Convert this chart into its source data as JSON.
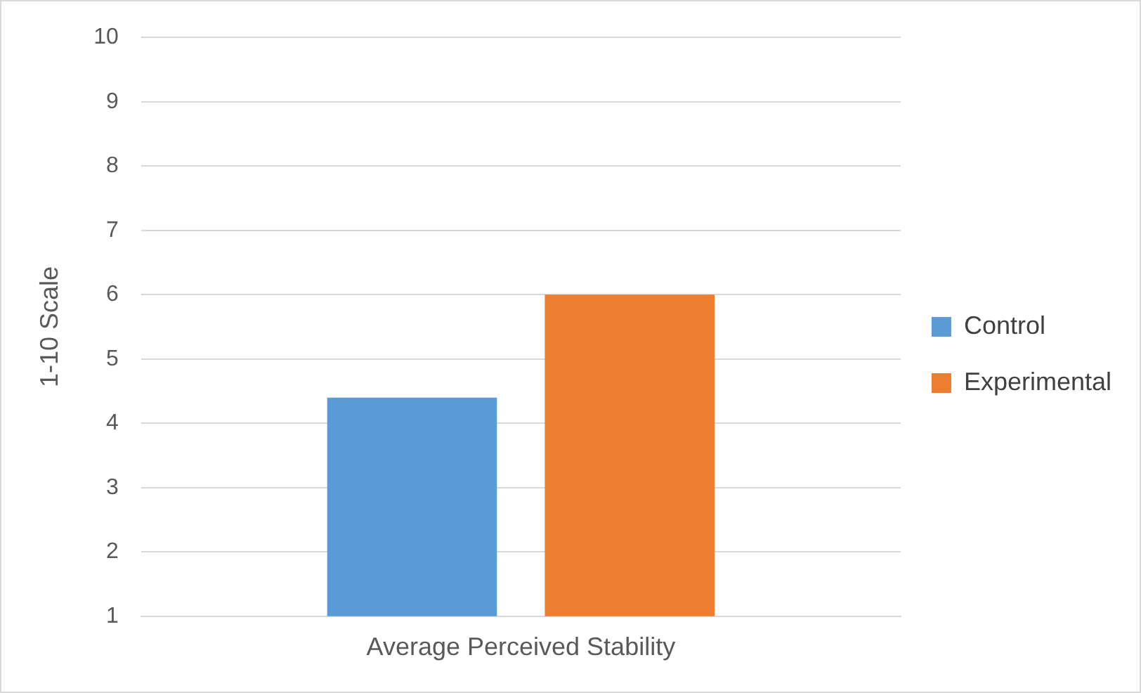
{
  "chart_data": {
    "type": "bar",
    "ylabel": "1-10 Scale",
    "categories": [
      "Average Perceived Stability"
    ],
    "series": [
      {
        "name": "Control",
        "color": "#5b9bd5",
        "values": [
          4.4
        ]
      },
      {
        "name": "Experimental",
        "color": "#ed7d31",
        "values": [
          6
        ]
      }
    ],
    "ylim": [
      1,
      10
    ],
    "yticks": [
      1,
      2,
      3,
      4,
      5,
      6,
      7,
      8,
      9,
      10
    ],
    "grid": "y",
    "legend": "right"
  }
}
